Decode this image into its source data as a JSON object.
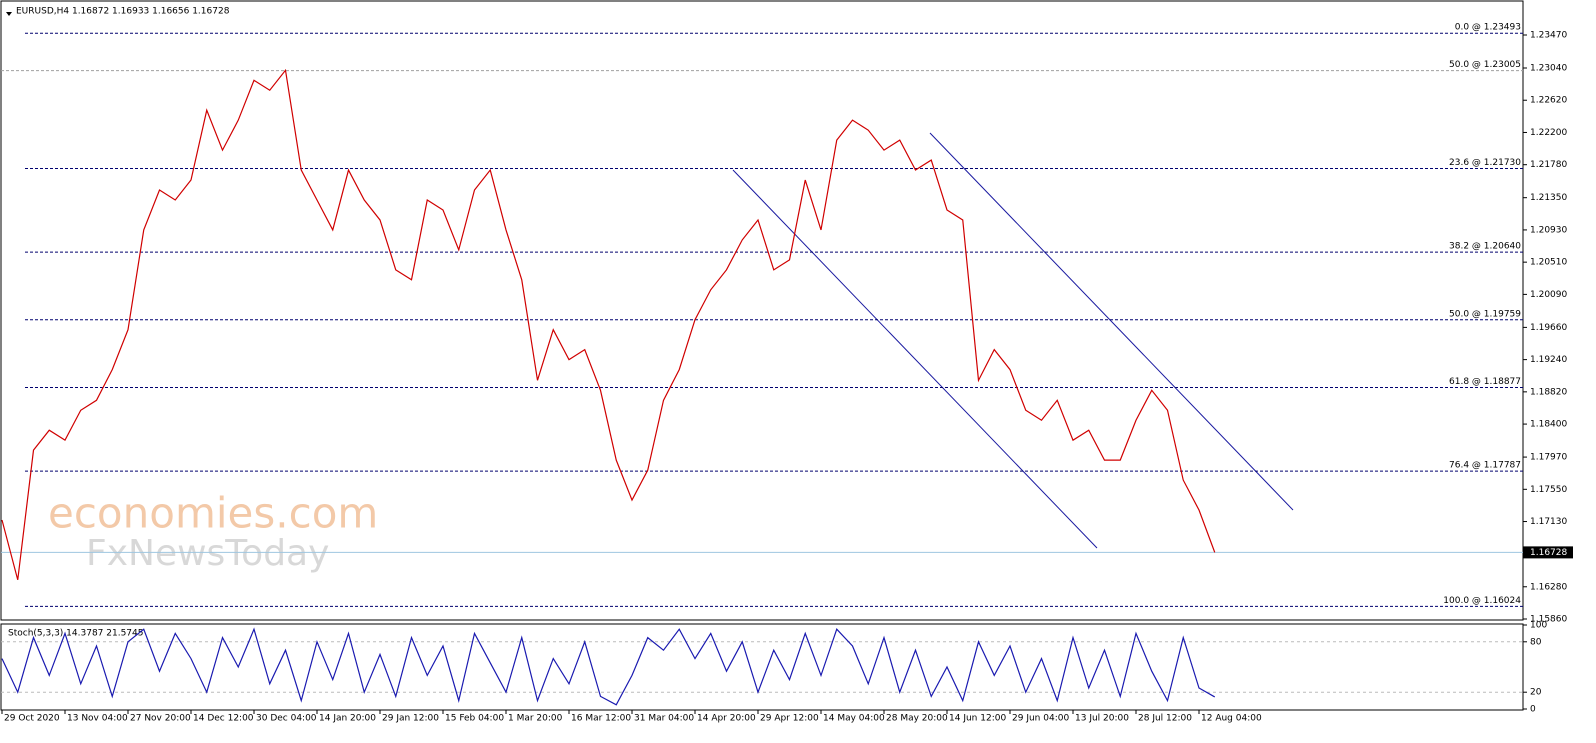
{
  "chart_data": [
    {
      "type": "line",
      "title": "EURUSD,H4  1.16872 1.16933 1.16656 1.16728",
      "categories": [
        "29 Oct 2020",
        null,
        null,
        null,
        "13 Nov 04:00",
        null,
        null,
        null,
        "27 Nov 20:00",
        null,
        null,
        null,
        "14 Dec 12:00",
        null,
        null,
        null,
        "30 Dec 04:00",
        null,
        null,
        null,
        "14 Jan 20:00",
        null,
        null,
        null,
        "29 Jan 12:00",
        null,
        null,
        null,
        "15 Feb 04:00",
        null,
        null,
        null,
        "1 Mar 20:00",
        null,
        null,
        null,
        "16 Mar 12:00",
        null,
        null,
        null,
        "31 Mar 04:00",
        null,
        null,
        null,
        "14 Apr 20:00",
        null,
        null,
        null,
        "29 Apr 12:00",
        null,
        null,
        null,
        "14 May 04:00",
        null,
        null,
        null,
        "28 May 20:00",
        null,
        null,
        null,
        "14 Jun 12:00",
        null,
        null,
        null,
        "29 Jun 04:00",
        null,
        null,
        null,
        "13 Jul 20:00",
        null,
        null,
        null,
        "28 Jul 12:00",
        null,
        null,
        null,
        "12 Aug 04:00",
        null
      ],
      "series": [
        {
          "color": "#d00000",
          "values": [
            1.1715,
            1.1637,
            1.1806,
            1.1832,
            1.1819,
            1.1858,
            1.1871,
            1.1911,
            1.1963,
            1.2093,
            1.2145,
            1.2132,
            1.2158,
            1.2249,
            1.2197,
            1.2236,
            1.2288,
            1.2275,
            1.2301,
            1.2171,
            1.2132,
            1.2093,
            1.2171,
            1.2132,
            1.2106,
            1.2041,
            1.2028,
            1.2132,
            1.2119,
            1.2067,
            1.2145,
            1.2171,
            1.2093,
            1.2028,
            1.1897,
            1.1963,
            1.1924,
            1.1937,
            1.1884,
            1.1793,
            1.1741,
            1.178,
            1.1871,
            1.1911,
            1.1976,
            1.2015,
            1.2041,
            1.208,
            1.2106,
            1.2041,
            1.2054,
            1.2158,
            1.2093,
            1.221,
            1.2236,
            1.2223,
            1.2197,
            1.221,
            1.2171,
            1.2184,
            1.2119,
            1.2106,
            1.1897,
            1.1937,
            1.1911,
            1.1858,
            1.1845,
            1.1871,
            1.1819,
            1.1832,
            1.1793,
            1.1793,
            1.1845,
            1.1884,
            1.1858,
            1.1767,
            1.1728,
            1.16728
          ]
        }
      ],
      "ylim": [
        1.15847,
        1.239
      ],
      "yticks": [
        {
          "value": 1.1586,
          "label": "1.15860"
        },
        {
          "value": 1.1628,
          "label": "1.16280"
        },
        {
          "value": 1.1713,
          "label": "1.17130"
        },
        {
          "value": 1.1755,
          "label": "1.17550"
        },
        {
          "value": 1.1797,
          "label": "1.17970"
        },
        {
          "value": 1.184,
          "label": "1.18400"
        },
        {
          "value": 1.1882,
          "label": "1.18820"
        },
        {
          "value": 1.1924,
          "label": "1.19240"
        },
        {
          "value": 1.1966,
          "label": "1.19660"
        },
        {
          "value": 1.2009,
          "label": "1.20090"
        },
        {
          "value": 1.2051,
          "label": "1.20510"
        },
        {
          "value": 1.2093,
          "label": "1.20930"
        },
        {
          "value": 1.2135,
          "label": "1.21350"
        },
        {
          "value": 1.2178,
          "label": "1.21780"
        },
        {
          "value": 1.222,
          "label": "1.22200"
        },
        {
          "value": 1.2262,
          "label": "1.22620"
        },
        {
          "value": 1.2304,
          "label": "1.23040"
        },
        {
          "value": 1.2347,
          "label": "1.23470"
        }
      ],
      "levels": [
        {
          "value": 1.23493,
          "label": "0.0 @ 1.23493",
          "color": "#00006e"
        },
        {
          "value": 1.23005,
          "label": "50.0 @ 1.23005",
          "color": "#a0a0a0"
        },
        {
          "value": 1.2173,
          "label": "23.6 @ 1.21730",
          "color": "#00006e"
        },
        {
          "value": 1.2064,
          "label": "38.2 @ 1.20640",
          "color": "#00006e"
        },
        {
          "value": 1.19759,
          "label": "50.0 @ 1.19759",
          "color": "#00006e"
        },
        {
          "value": 1.18877,
          "label": "61.8 @ 1.18877",
          "color": "#00006e"
        },
        {
          "value": 1.17787,
          "label": "76.4 @ 1.17787",
          "color": "#00006e"
        },
        {
          "value": 1.16024,
          "label": "100.0 @ 1.16024",
          "color": "#00006e"
        }
      ],
      "current_price": {
        "value": 1.16728,
        "label": "1.16728"
      },
      "watermark": [
        "economies.com",
        "FxNewsToday"
      ]
    },
    {
      "type": "line",
      "title": "Stoch(5,3,3) 14.3787 21.5745",
      "series": [
        {
          "color": "#1a1ab0",
          "values": [
            60,
            20,
            85,
            40,
            90,
            30,
            75,
            15,
            80,
            95,
            45,
            90,
            60,
            20,
            85,
            50,
            95,
            30,
            70,
            10,
            80,
            35,
            90,
            20,
            65,
            15,
            85,
            40,
            75,
            10,
            90,
            55,
            20,
            85,
            10,
            60,
            30,
            80,
            15,
            5,
            40,
            85,
            70,
            95,
            60,
            90,
            45,
            80,
            20,
            70,
            35,
            90,
            40,
            95,
            75,
            30,
            85,
            20,
            70,
            15,
            50,
            10,
            80,
            40,
            75,
            20,
            60,
            10,
            85,
            25,
            70,
            15,
            90,
            45,
            10,
            85,
            25,
            14.38
          ]
        }
      ],
      "ylim": [
        0,
        100
      ],
      "yticks": [
        0,
        20,
        80,
        100
      ]
    }
  ]
}
